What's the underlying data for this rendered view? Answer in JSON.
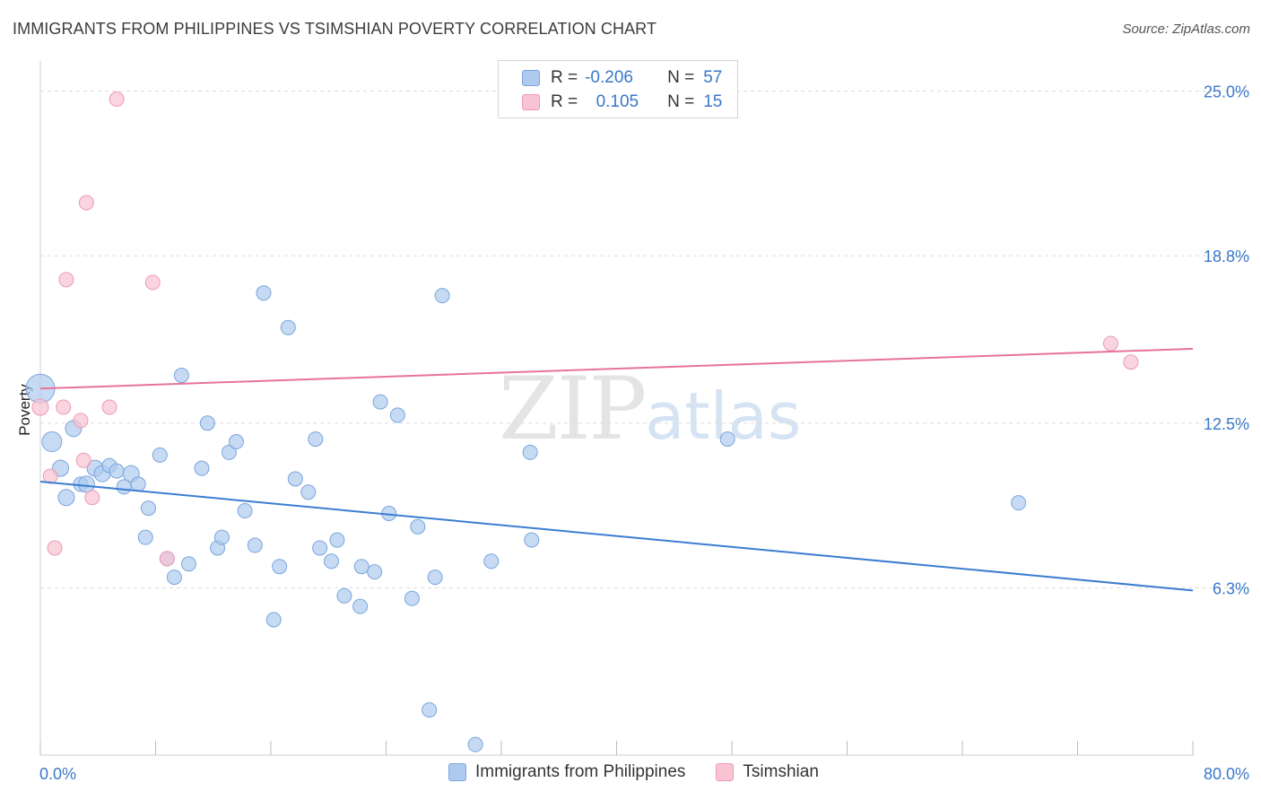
{
  "title": "IMMIGRANTS FROM PHILIPPINES VS TSIMSHIAN POVERTY CORRELATION CHART",
  "source": "Source: ZipAtlas.com",
  "legend": {
    "rows": [
      {
        "r_label": "R =",
        "r_value": "-0.206",
        "n_label": "N =",
        "n_value": "57"
      },
      {
        "r_label": "R =",
        "r_value": "0.105",
        "n_label": "N =",
        "n_value": "15"
      }
    ]
  },
  "watermark": {
    "zip": "ZIP",
    "atlas": "atlas"
  },
  "colors": {
    "blue_fill": "#aecbef",
    "blue_stroke": "#7aa6dc",
    "blue_line": "#3b7dd0",
    "pink_fill": "#f8c3d3",
    "pink_stroke": "#ec9ab3",
    "pink_line": "#e8739a",
    "axis_text": "#3a78c9",
    "grid": "#dcdcdc"
  },
  "chart_data": {
    "type": "scatter",
    "title": "IMMIGRANTS FROM PHILIPPINES VS TSIMSHIAN POVERTY CORRELATION CHART",
    "xlabel": "",
    "ylabel": "Poverty",
    "xlim": [
      0,
      80
    ],
    "ylim": [
      0,
      26
    ],
    "x_tick_labels": [
      "0.0%",
      "80.0%"
    ],
    "y_ticks": [
      6.3,
      12.5,
      18.8,
      25.0
    ],
    "y_tick_labels": [
      "6.3%",
      "12.5%",
      "18.8%",
      "25.0%"
    ],
    "grid": true,
    "legend_position": "top-center",
    "series": [
      {
        "name": "Immigrants from Philippines",
        "color": "#aecbef",
        "points": [
          [
            0.0,
            13.8,
            16
          ],
          [
            0.8,
            11.8,
            11
          ],
          [
            1.4,
            10.8,
            9
          ],
          [
            1.8,
            9.7,
            9
          ],
          [
            2.3,
            12.3,
            9
          ],
          [
            2.8,
            10.2,
            8
          ],
          [
            3.2,
            10.2,
            9
          ],
          [
            3.8,
            10.8,
            9
          ],
          [
            4.3,
            10.6,
            9
          ],
          [
            4.8,
            10.9,
            8
          ],
          [
            5.3,
            10.7,
            8
          ],
          [
            5.8,
            10.1,
            8
          ],
          [
            6.3,
            10.6,
            9
          ],
          [
            6.8,
            10.2,
            8
          ],
          [
            7.5,
            9.3,
            8
          ],
          [
            7.3,
            8.2,
            8
          ],
          [
            8.3,
            11.3,
            8
          ],
          [
            8.8,
            7.4,
            8
          ],
          [
            9.3,
            6.7,
            8
          ],
          [
            9.8,
            14.3,
            8
          ],
          [
            10.3,
            7.2,
            8
          ],
          [
            11.2,
            10.8,
            8
          ],
          [
            11.6,
            12.5,
            8
          ],
          [
            12.3,
            7.8,
            8
          ],
          [
            12.6,
            8.2,
            8
          ],
          [
            13.1,
            11.4,
            8
          ],
          [
            13.6,
            11.8,
            8
          ],
          [
            14.2,
            9.2,
            8
          ],
          [
            14.9,
            7.9,
            8
          ],
          [
            15.5,
            17.4,
            8
          ],
          [
            16.2,
            5.1,
            8
          ],
          [
            16.6,
            7.1,
            8
          ],
          [
            17.2,
            16.1,
            8
          ],
          [
            17.7,
            10.4,
            8
          ],
          [
            18.6,
            9.9,
            8
          ],
          [
            19.1,
            11.9,
            8
          ],
          [
            19.4,
            7.8,
            8
          ],
          [
            20.2,
            7.3,
            8
          ],
          [
            20.6,
            8.1,
            8
          ],
          [
            21.1,
            6.0,
            8
          ],
          [
            22.2,
            5.6,
            8
          ],
          [
            22.3,
            7.1,
            8
          ],
          [
            23.2,
            6.9,
            8
          ],
          [
            23.6,
            13.3,
            8
          ],
          [
            24.2,
            9.1,
            8
          ],
          [
            24.8,
            12.8,
            8
          ],
          [
            25.8,
            5.9,
            8
          ],
          [
            26.2,
            8.6,
            8
          ],
          [
            27.0,
            1.7,
            8
          ],
          [
            27.4,
            6.7,
            8
          ],
          [
            27.9,
            17.3,
            8
          ],
          [
            30.2,
            0.4,
            8
          ],
          [
            31.3,
            7.3,
            8
          ],
          [
            34.0,
            11.4,
            8
          ],
          [
            34.1,
            8.1,
            8
          ],
          [
            47.7,
            11.9,
            8
          ],
          [
            67.9,
            9.5,
            8
          ]
        ],
        "trend": {
          "x": [
            0,
            80
          ],
          "y": [
            10.3,
            6.2
          ]
        }
      },
      {
        "name": "Tsimshian",
        "color": "#f8c3d3",
        "points": [
          [
            0.0,
            13.1,
            9
          ],
          [
            0.7,
            10.5,
            8
          ],
          [
            1.0,
            7.8,
            8
          ],
          [
            1.6,
            13.1,
            8
          ],
          [
            1.8,
            17.9,
            8
          ],
          [
            2.8,
            12.6,
            8
          ],
          [
            3.0,
            11.1,
            8
          ],
          [
            3.2,
            20.8,
            8
          ],
          [
            3.6,
            9.7,
            8
          ],
          [
            4.8,
            13.1,
            8
          ],
          [
            5.3,
            24.7,
            8
          ],
          [
            7.8,
            17.8,
            8
          ],
          [
            8.8,
            7.4,
            8
          ],
          [
            74.3,
            15.5,
            8
          ],
          [
            75.7,
            14.8,
            8
          ]
        ],
        "trend": {
          "x": [
            0,
            80
          ],
          "y": [
            13.8,
            15.3
          ]
        }
      }
    ]
  },
  "bottom_legend": [
    {
      "label": "Immigrants from Philippines"
    },
    {
      "label": "Tsimshian"
    }
  ]
}
